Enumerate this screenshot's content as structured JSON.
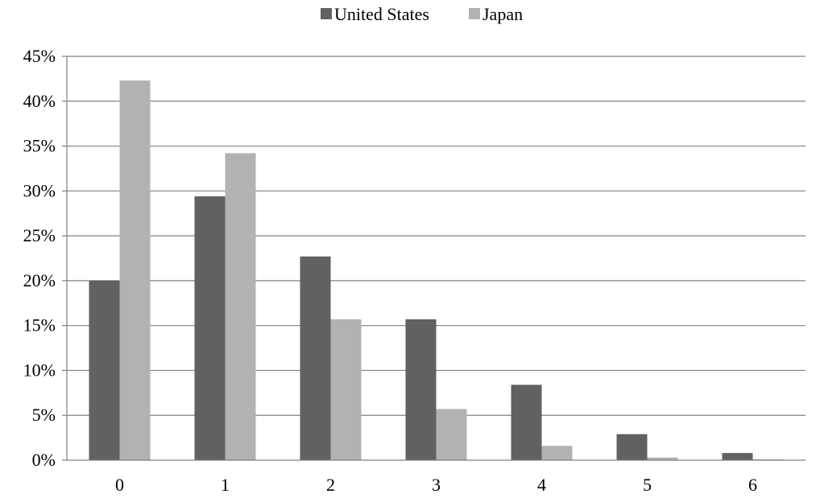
{
  "chart_data": {
    "type": "bar",
    "title": "",
    "xlabel": "",
    "ylabel": "",
    "categories": [
      "0",
      "1",
      "2",
      "3",
      "4",
      "5",
      "6"
    ],
    "series": [
      {
        "name": "United States",
        "color": "#616161",
        "values": [
          20.0,
          29.4,
          22.7,
          15.7,
          8.4,
          2.9,
          0.8
        ]
      },
      {
        "name": "Japan",
        "color": "#b2b2b2",
        "values": [
          42.3,
          34.2,
          15.7,
          5.7,
          1.6,
          0.3,
          0.1
        ]
      }
    ],
    "ylim": [
      0,
      45
    ],
    "yticks": [
      0,
      5,
      10,
      15,
      20,
      25,
      30,
      35,
      40,
      45
    ],
    "ytick_labels": [
      "0%",
      "5%",
      "10%",
      "15%",
      "20%",
      "25%",
      "30%",
      "35%",
      "40%",
      "45%"
    ],
    "grid": true,
    "grid_color": "#808080",
    "legend_position": "top-center"
  }
}
